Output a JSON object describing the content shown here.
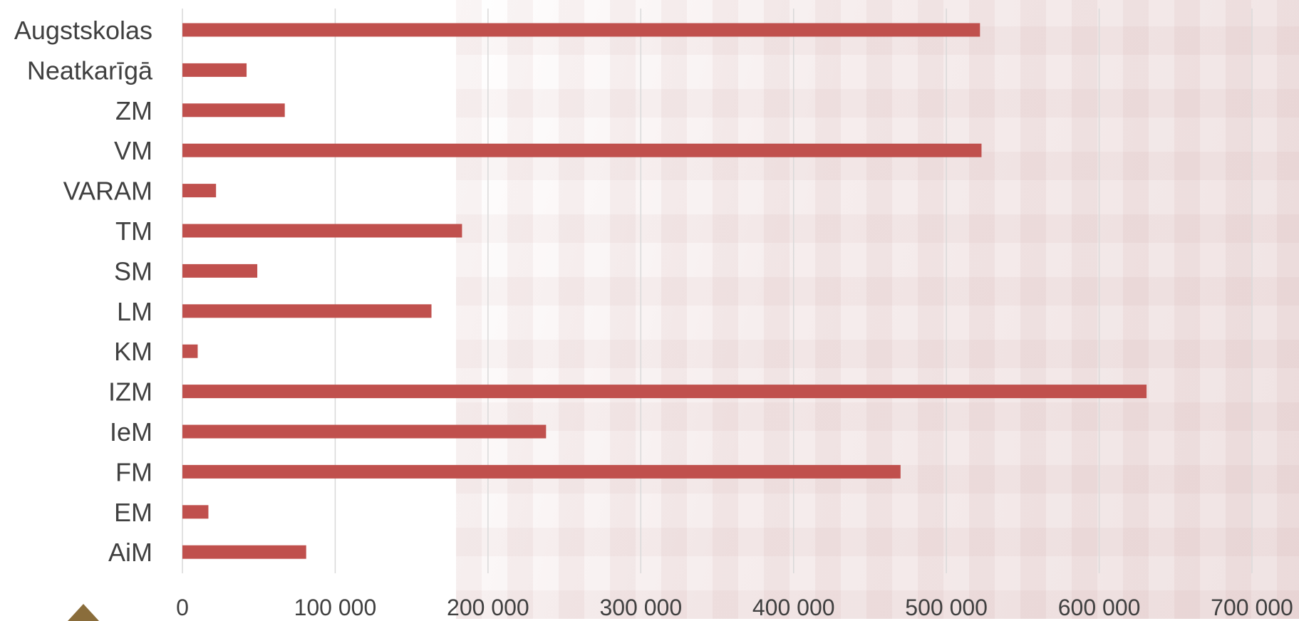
{
  "chart_data": {
    "type": "bar",
    "orientation": "horizontal",
    "title": "",
    "xlabel": "",
    "ylabel": "",
    "categories": [
      "Augstskolas",
      "Neatkarīgā",
      "ZM",
      "VM",
      "VARAM",
      "TM",
      "SM",
      "LM",
      "KM",
      "IZM",
      "IeM",
      "FM",
      "EM",
      "AiM"
    ],
    "values": [
      522000,
      42000,
      67000,
      523000,
      22000,
      183000,
      49000,
      163000,
      10000,
      631000,
      238000,
      470000,
      17000,
      81000
    ],
    "xlim": [
      0,
      700000
    ],
    "xticks": [
      0,
      100000,
      200000,
      300000,
      400000,
      500000,
      600000,
      700000
    ],
    "xtick_labels": [
      "0",
      "100 000",
      "200 000",
      "300 000",
      "400 000",
      "500 000",
      "600 000",
      "700 000"
    ],
    "grid": "vertical",
    "legend": "none",
    "colors": {
      "bar": "#c0504d",
      "grid": "#d9d9d9",
      "text": "#404040"
    }
  }
}
